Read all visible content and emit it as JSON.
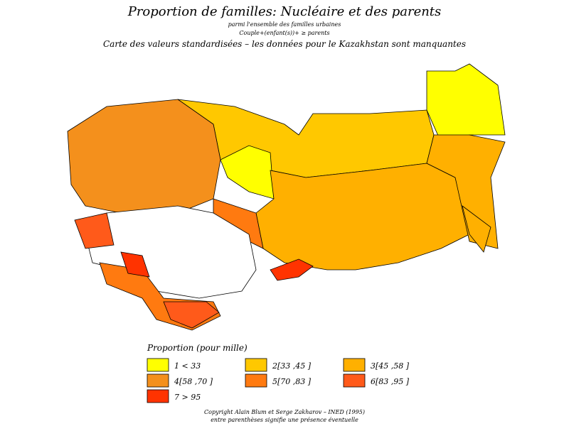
{
  "header": {
    "title": "Proportion de familles: Nucléaire et des parents",
    "subtitle": "parmi l'ensemble des familles urbaines",
    "definition": "Couple+(enfant(s))+ ≥ parents",
    "note": "Carte des valeurs standardisées – les données pour le Kazakhstan sont manquantes"
  },
  "legend": {
    "title": "Proportion (pour mille)",
    "items": [
      {
        "label": "1 <  33",
        "color": "#ffff00"
      },
      {
        "label": "2[33 ,45 ]",
        "color": "#ffc800"
      },
      {
        "label": "3[45 ,58 ]",
        "color": "#ffb000"
      },
      {
        "label": "4[58 ,70 ]",
        "color": "#f4901c"
      },
      {
        "label": "5[70 ,83 ]",
        "color": "#ff7a10"
      },
      {
        "label": "6[83 ,95 ]",
        "color": "#ff5a1a"
      },
      {
        "label": "7 >  95",
        "color": "#ff3300"
      }
    ]
  },
  "footer": {
    "copyright": "Copyright Alain Blum et Serge Zakharov – INED (1995)",
    "remark": "entre parenthèses signifie une présence éventuelle"
  }
}
